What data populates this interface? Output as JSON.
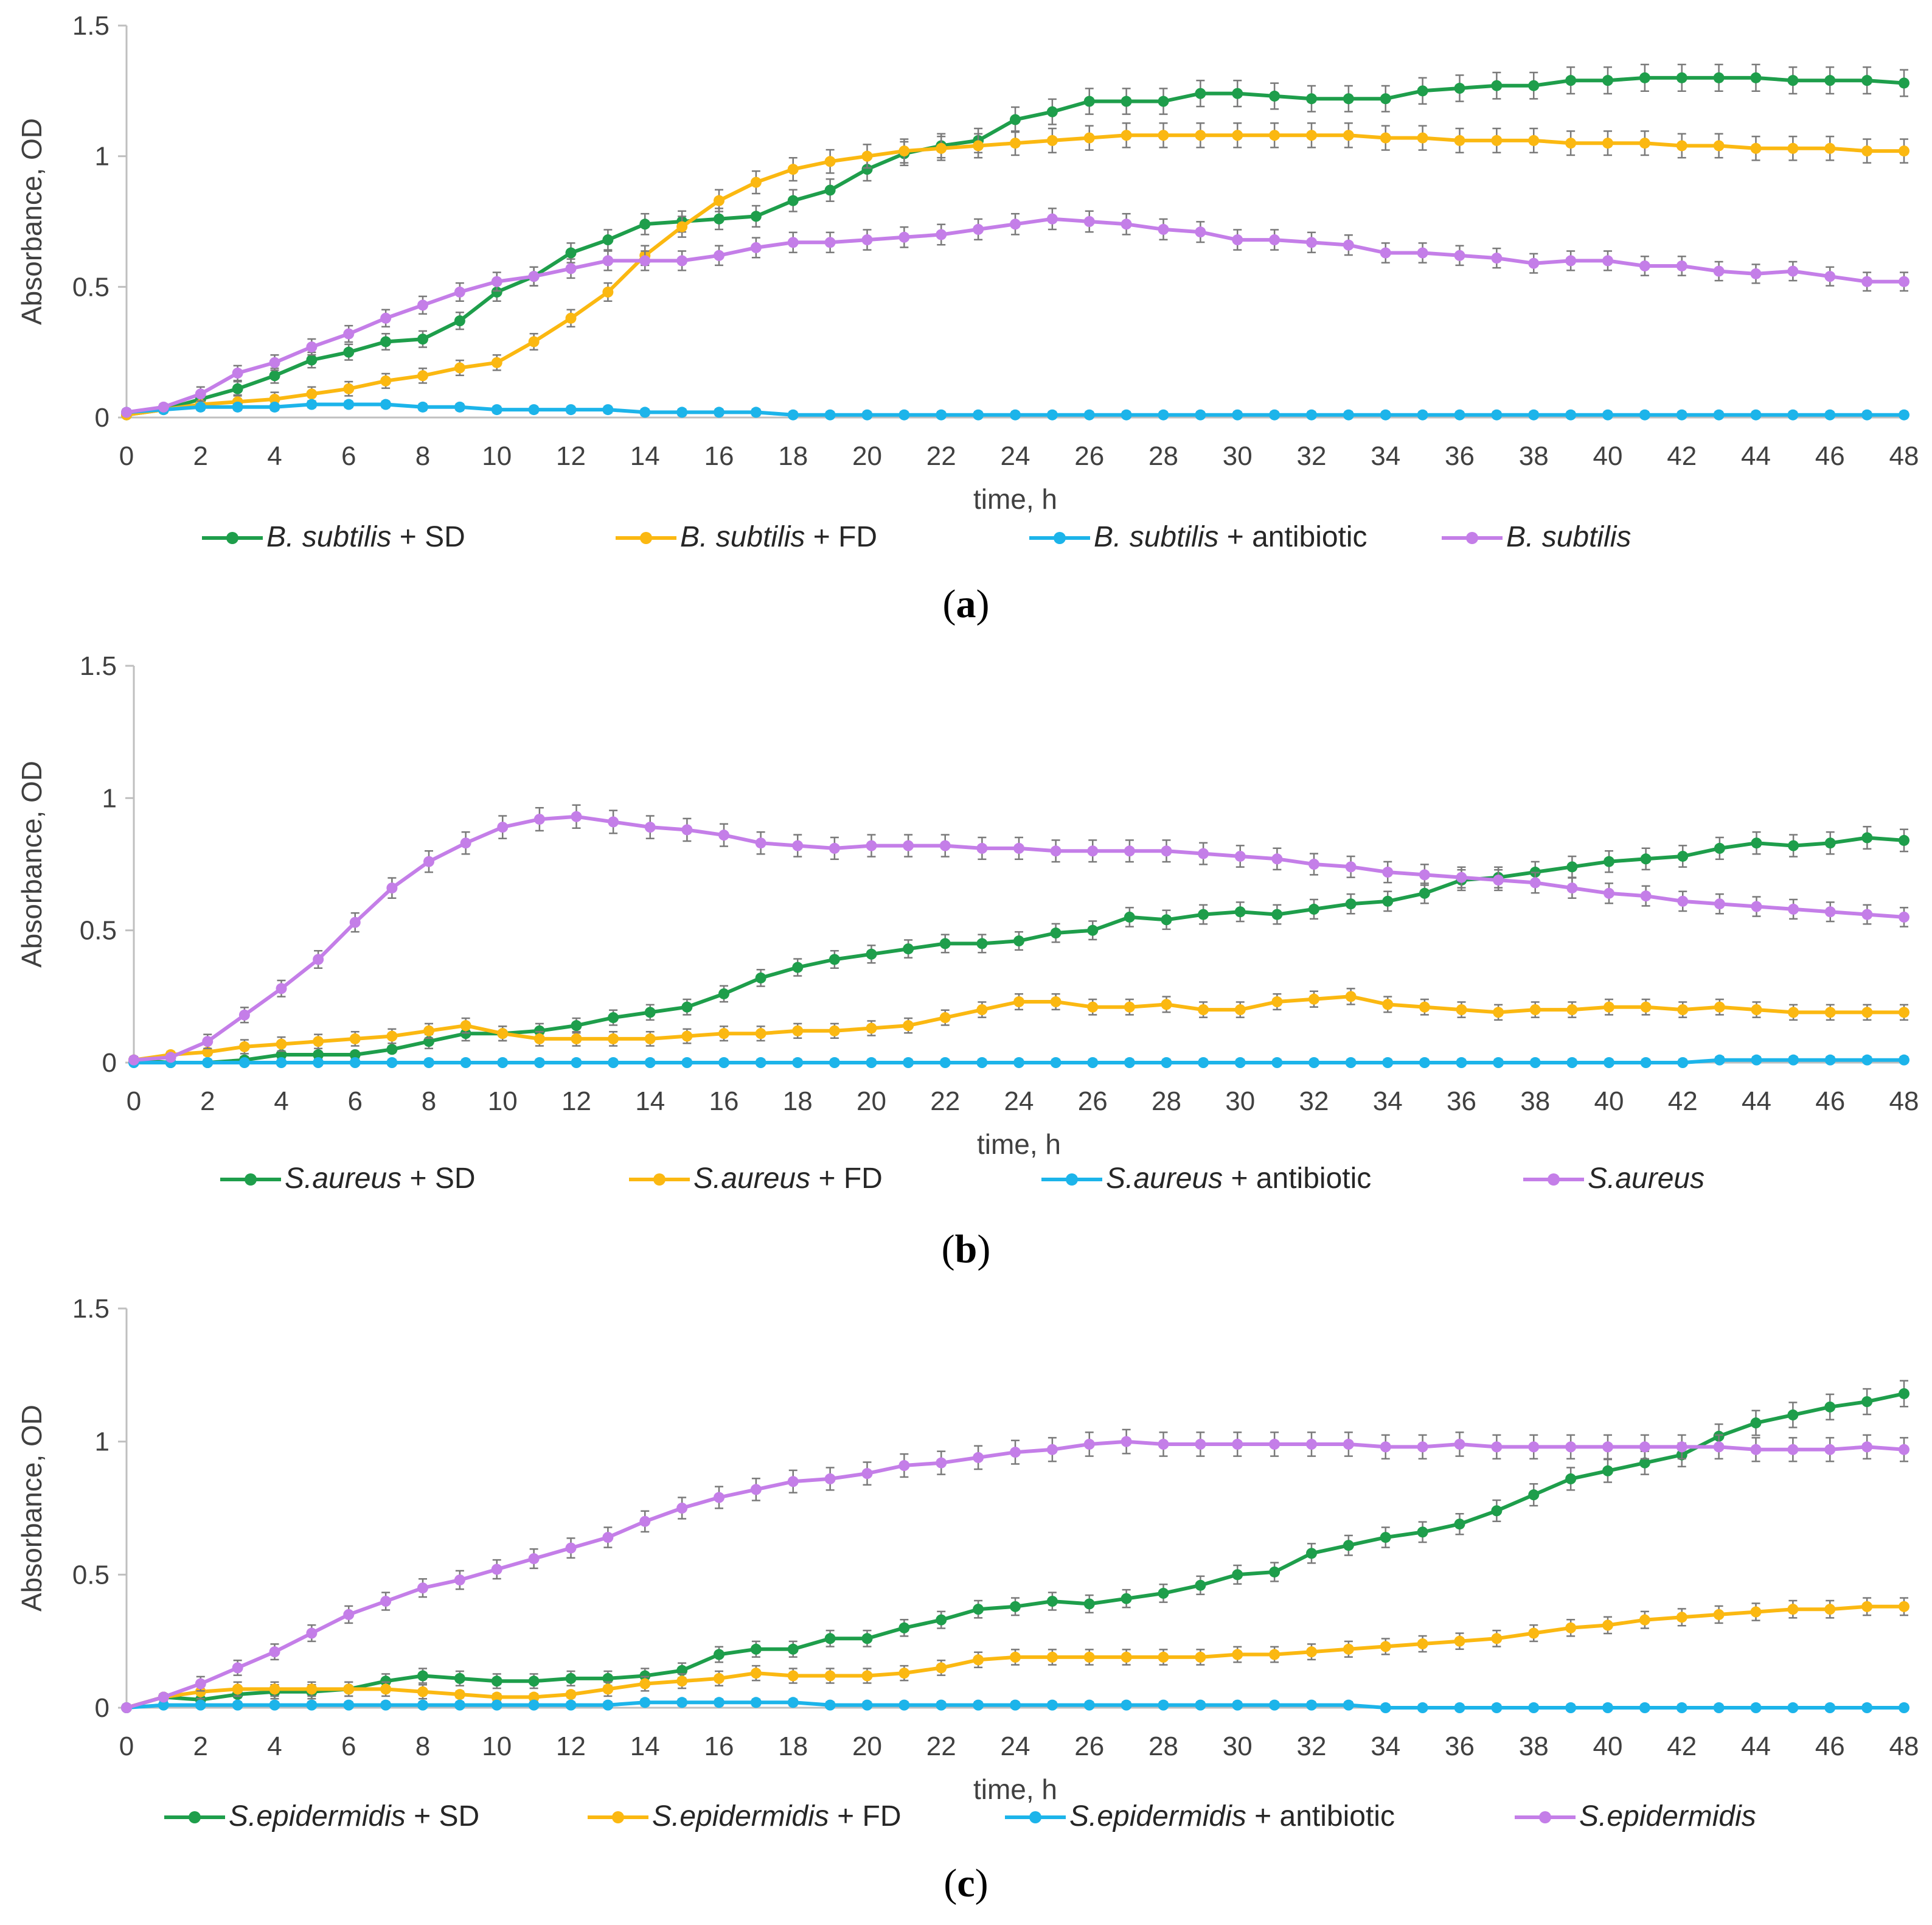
{
  "chart_data": [
    {
      "type": "line",
      "panel_id": "a",
      "caption": "a",
      "xlabel": "time, h",
      "ylabel": "Absorbance, OD",
      "xlim": [
        0,
        48
      ],
      "ylim": [
        0,
        1.5
      ],
      "xticks": [
        "0",
        "2",
        "4",
        "6",
        "8",
        "10",
        "12",
        "14",
        "16",
        "18",
        "20",
        "22",
        "24",
        "26",
        "28",
        "30",
        "32",
        "34",
        "36",
        "38",
        "40",
        "42",
        "44",
        "46",
        "48"
      ],
      "yticks": [
        "0",
        "0.5",
        "1",
        "1.5"
      ],
      "x": [
        0,
        1,
        2,
        3,
        4,
        5,
        6,
        7,
        8,
        9,
        10,
        11,
        12,
        13,
        14,
        15,
        16,
        17,
        18,
        19,
        20,
        21,
        22,
        23,
        24,
        25,
        26,
        27,
        28,
        29,
        30,
        31,
        32,
        33,
        34,
        35,
        36,
        37,
        38,
        39,
        40,
        41,
        42,
        43,
        44,
        45,
        46,
        47,
        48
      ],
      "series": [
        {
          "name": "B. subtilis",
          "suffix": " + SD",
          "color": "#1e9e4b",
          "values": [
            0.01,
            0.03,
            0.07,
            0.11,
            0.16,
            0.22,
            0.25,
            0.29,
            0.3,
            0.37,
            0.48,
            0.54,
            0.63,
            0.68,
            0.74,
            0.75,
            0.76,
            0.77,
            0.83,
            0.87,
            0.95,
            1.01,
            1.04,
            1.06,
            1.14,
            1.17,
            1.21,
            1.21,
            1.21,
            1.24,
            1.24,
            1.23,
            1.22,
            1.22,
            1.22,
            1.25,
            1.26,
            1.27,
            1.27,
            1.29,
            1.29,
            1.3,
            1.3,
            1.3,
            1.3,
            1.29,
            1.29,
            1.29,
            1.28
          ]
        },
        {
          "name": "B. subtilis",
          "suffix": " + FD",
          "color": "#fbb811",
          "values": [
            0.01,
            0.03,
            0.05,
            0.06,
            0.07,
            0.09,
            0.11,
            0.14,
            0.16,
            0.19,
            0.21,
            0.29,
            0.38,
            0.48,
            0.62,
            0.73,
            0.83,
            0.9,
            0.95,
            0.98,
            1.0,
            1.02,
            1.03,
            1.04,
            1.05,
            1.06,
            1.07,
            1.08,
            1.08,
            1.08,
            1.08,
            1.08,
            1.08,
            1.08,
            1.07,
            1.07,
            1.06,
            1.06,
            1.06,
            1.05,
            1.05,
            1.05,
            1.04,
            1.04,
            1.03,
            1.03,
            1.03,
            1.02,
            1.02
          ]
        },
        {
          "name": "B. subtilis",
          "suffix": " + antibiotic",
          "color": "#1cb4ea",
          "values": [
            0.02,
            0.03,
            0.04,
            0.04,
            0.04,
            0.05,
            0.05,
            0.05,
            0.04,
            0.04,
            0.03,
            0.03,
            0.03,
            0.03,
            0.02,
            0.02,
            0.02,
            0.02,
            0.01,
            0.01,
            0.01,
            0.01,
            0.01,
            0.01,
            0.01,
            0.01,
            0.01,
            0.01,
            0.01,
            0.01,
            0.01,
            0.01,
            0.01,
            0.01,
            0.01,
            0.01,
            0.01,
            0.01,
            0.01,
            0.01,
            0.01,
            0.01,
            0.01,
            0.01,
            0.01,
            0.01,
            0.01,
            0.01,
            0.01
          ]
        },
        {
          "name": "B. subtilis",
          "suffix": "",
          "color": "#c47ee8",
          "values": [
            0.02,
            0.04,
            0.09,
            0.17,
            0.21,
            0.27,
            0.32,
            0.38,
            0.43,
            0.48,
            0.52,
            0.54,
            0.57,
            0.6,
            0.6,
            0.6,
            0.62,
            0.65,
            0.67,
            0.67,
            0.68,
            0.69,
            0.7,
            0.72,
            0.74,
            0.76,
            0.75,
            0.74,
            0.72,
            0.71,
            0.68,
            0.68,
            0.67,
            0.66,
            0.63,
            0.63,
            0.62,
            0.61,
            0.59,
            0.6,
            0.6,
            0.58,
            0.58,
            0.56,
            0.55,
            0.56,
            0.54,
            0.52,
            0.52
          ]
        }
      ]
    },
    {
      "type": "line",
      "panel_id": "b",
      "caption": "b",
      "xlabel": "time, h",
      "ylabel": "Absorbance, OD",
      "xlim": [
        0,
        48
      ],
      "ylim": [
        0,
        1.5
      ],
      "xticks": [
        "0",
        "2",
        "4",
        "6",
        "8",
        "10",
        "12",
        "14",
        "16",
        "18",
        "20",
        "22",
        "24",
        "26",
        "28",
        "30",
        "32",
        "34",
        "36",
        "38",
        "40",
        "42",
        "44",
        "46",
        "48"
      ],
      "yticks": [
        "0",
        "0.5",
        "1",
        "1.5"
      ],
      "x": [
        0,
        1,
        2,
        3,
        4,
        5,
        6,
        7,
        8,
        9,
        10,
        11,
        12,
        13,
        14,
        15,
        16,
        17,
        18,
        19,
        20,
        21,
        22,
        23,
        24,
        25,
        26,
        27,
        28,
        29,
        30,
        31,
        32,
        33,
        34,
        35,
        36,
        37,
        38,
        39,
        40,
        41,
        42,
        43,
        44,
        45,
        46,
        47,
        48
      ],
      "series": [
        {
          "name": "S.aureus",
          "suffix": " + SD",
          "color": "#1e9e4b",
          "values": [
            0.01,
            0.0,
            0.0,
            0.01,
            0.03,
            0.03,
            0.03,
            0.05,
            0.08,
            0.11,
            0.11,
            0.12,
            0.14,
            0.17,
            0.19,
            0.21,
            0.26,
            0.32,
            0.36,
            0.39,
            0.41,
            0.43,
            0.45,
            0.45,
            0.46,
            0.49,
            0.5,
            0.55,
            0.54,
            0.56,
            0.57,
            0.56,
            0.58,
            0.6,
            0.61,
            0.64,
            0.69,
            0.7,
            0.72,
            0.74,
            0.76,
            0.77,
            0.78,
            0.81,
            0.83,
            0.82,
            0.83,
            0.85,
            0.84
          ]
        },
        {
          "name": "S.aureus",
          "suffix": " + FD",
          "color": "#fbb811",
          "values": [
            0.01,
            0.03,
            0.04,
            0.06,
            0.07,
            0.08,
            0.09,
            0.1,
            0.12,
            0.14,
            0.11,
            0.09,
            0.09,
            0.09,
            0.09,
            0.1,
            0.11,
            0.11,
            0.12,
            0.12,
            0.13,
            0.14,
            0.17,
            0.2,
            0.23,
            0.23,
            0.21,
            0.21,
            0.22,
            0.2,
            0.2,
            0.23,
            0.24,
            0.25,
            0.22,
            0.21,
            0.2,
            0.19,
            0.2,
            0.2,
            0.21,
            0.21,
            0.2,
            0.21,
            0.2,
            0.19,
            0.19,
            0.19,
            0.19
          ]
        },
        {
          "name": "S.aureus",
          "suffix": " + antibiotic",
          "color": "#1cb4ea",
          "values": [
            0.0,
            0.0,
            0.0,
            0.0,
            0.0,
            0.0,
            0.0,
            0.0,
            0.0,
            0.0,
            0.0,
            0.0,
            0.0,
            0.0,
            0.0,
            0.0,
            0.0,
            0.0,
            0.0,
            0.0,
            0.0,
            0.0,
            0.0,
            0.0,
            0.0,
            0.0,
            0.0,
            0.0,
            0.0,
            0.0,
            0.0,
            0.0,
            0.0,
            0.0,
            0.0,
            0.0,
            0.0,
            0.0,
            0.0,
            0.0,
            0.0,
            0.0,
            0.0,
            0.01,
            0.01,
            0.01,
            0.01,
            0.01,
            0.01
          ]
        },
        {
          "name": "S.aureus",
          "suffix": "",
          "color": "#c47ee8",
          "values": [
            0.01,
            0.02,
            0.08,
            0.18,
            0.28,
            0.39,
            0.53,
            0.66,
            0.76,
            0.83,
            0.89,
            0.92,
            0.93,
            0.91,
            0.89,
            0.88,
            0.86,
            0.83,
            0.82,
            0.81,
            0.82,
            0.82,
            0.82,
            0.81,
            0.81,
            0.8,
            0.8,
            0.8,
            0.8,
            0.79,
            0.78,
            0.77,
            0.75,
            0.74,
            0.72,
            0.71,
            0.7,
            0.69,
            0.68,
            0.66,
            0.64,
            0.63,
            0.61,
            0.6,
            0.59,
            0.58,
            0.57,
            0.56,
            0.55
          ]
        }
      ]
    },
    {
      "type": "line",
      "panel_id": "c",
      "caption": "c",
      "xlabel": "time, h",
      "ylabel": "Absorbance, OD",
      "xlim": [
        0,
        48
      ],
      "ylim": [
        0,
        1.5
      ],
      "xticks": [
        "0",
        "2",
        "4",
        "6",
        "8",
        "10",
        "12",
        "14",
        "16",
        "18",
        "20",
        "22",
        "24",
        "26",
        "28",
        "30",
        "32",
        "34",
        "36",
        "38",
        "40",
        "42",
        "44",
        "46",
        "48"
      ],
      "yticks": [
        "0",
        "0.5",
        "1",
        "1.5"
      ],
      "x": [
        0,
        1,
        2,
        3,
        4,
        5,
        6,
        7,
        8,
        9,
        10,
        11,
        12,
        13,
        14,
        15,
        16,
        17,
        18,
        19,
        20,
        21,
        22,
        23,
        24,
        25,
        26,
        27,
        28,
        29,
        30,
        31,
        32,
        33,
        34,
        35,
        36,
        37,
        38,
        39,
        40,
        41,
        42,
        43,
        44,
        45,
        46,
        47,
        48
      ],
      "series": [
        {
          "name": "S.epidermidis",
          "suffix": " + SD",
          "color": "#1e9e4b",
          "values": [
            0.0,
            0.04,
            0.03,
            0.05,
            0.06,
            0.06,
            0.07,
            0.1,
            0.12,
            0.11,
            0.1,
            0.1,
            0.11,
            0.11,
            0.12,
            0.14,
            0.2,
            0.22,
            0.22,
            0.26,
            0.26,
            0.3,
            0.33,
            0.37,
            0.38,
            0.4,
            0.39,
            0.41,
            0.43,
            0.46,
            0.5,
            0.51,
            0.58,
            0.61,
            0.64,
            0.66,
            0.69,
            0.74,
            0.8,
            0.86,
            0.89,
            0.92,
            0.95,
            1.02,
            1.07,
            1.1,
            1.13,
            1.15,
            1.18
          ]
        },
        {
          "name": "S.epidermidis",
          "suffix": " + FD",
          "color": "#fbb811",
          "values": [
            0.0,
            0.04,
            0.06,
            0.07,
            0.07,
            0.07,
            0.07,
            0.07,
            0.06,
            0.05,
            0.04,
            0.04,
            0.05,
            0.07,
            0.09,
            0.1,
            0.11,
            0.13,
            0.12,
            0.12,
            0.12,
            0.13,
            0.15,
            0.18,
            0.19,
            0.19,
            0.19,
            0.19,
            0.19,
            0.19,
            0.2,
            0.2,
            0.21,
            0.22,
            0.23,
            0.24,
            0.25,
            0.26,
            0.28,
            0.3,
            0.31,
            0.33,
            0.34,
            0.35,
            0.36,
            0.37,
            0.37,
            0.38,
            0.38
          ]
        },
        {
          "name": "S.epidermidis",
          "suffix": " + antibiotic",
          "color": "#1cb4ea",
          "values": [
            0.0,
            0.01,
            0.01,
            0.01,
            0.01,
            0.01,
            0.01,
            0.01,
            0.01,
            0.01,
            0.01,
            0.01,
            0.01,
            0.01,
            0.02,
            0.02,
            0.02,
            0.02,
            0.02,
            0.01,
            0.01,
            0.01,
            0.01,
            0.01,
            0.01,
            0.01,
            0.01,
            0.01,
            0.01,
            0.01,
            0.01,
            0.01,
            0.01,
            0.01,
            0.0,
            0.0,
            0.0,
            0.0,
            0.0,
            0.0,
            0.0,
            0.0,
            0.0,
            0.0,
            0.0,
            0.0,
            0.0,
            0.0,
            0.0
          ]
        },
        {
          "name": "S.epidermidis",
          "suffix": "",
          "color": "#c47ee8",
          "values": [
            0.0,
            0.04,
            0.09,
            0.15,
            0.21,
            0.28,
            0.35,
            0.4,
            0.45,
            0.48,
            0.52,
            0.56,
            0.6,
            0.64,
            0.7,
            0.75,
            0.79,
            0.82,
            0.85,
            0.86,
            0.88,
            0.91,
            0.92,
            0.94,
            0.96,
            0.97,
            0.99,
            1.0,
            0.99,
            0.99,
            0.99,
            0.99,
            0.99,
            0.99,
            0.98,
            0.98,
            0.99,
            0.98,
            0.98,
            0.98,
            0.98,
            0.98,
            0.98,
            0.98,
            0.97,
            0.97,
            0.97,
            0.98,
            0.97
          ]
        }
      ]
    }
  ]
}
